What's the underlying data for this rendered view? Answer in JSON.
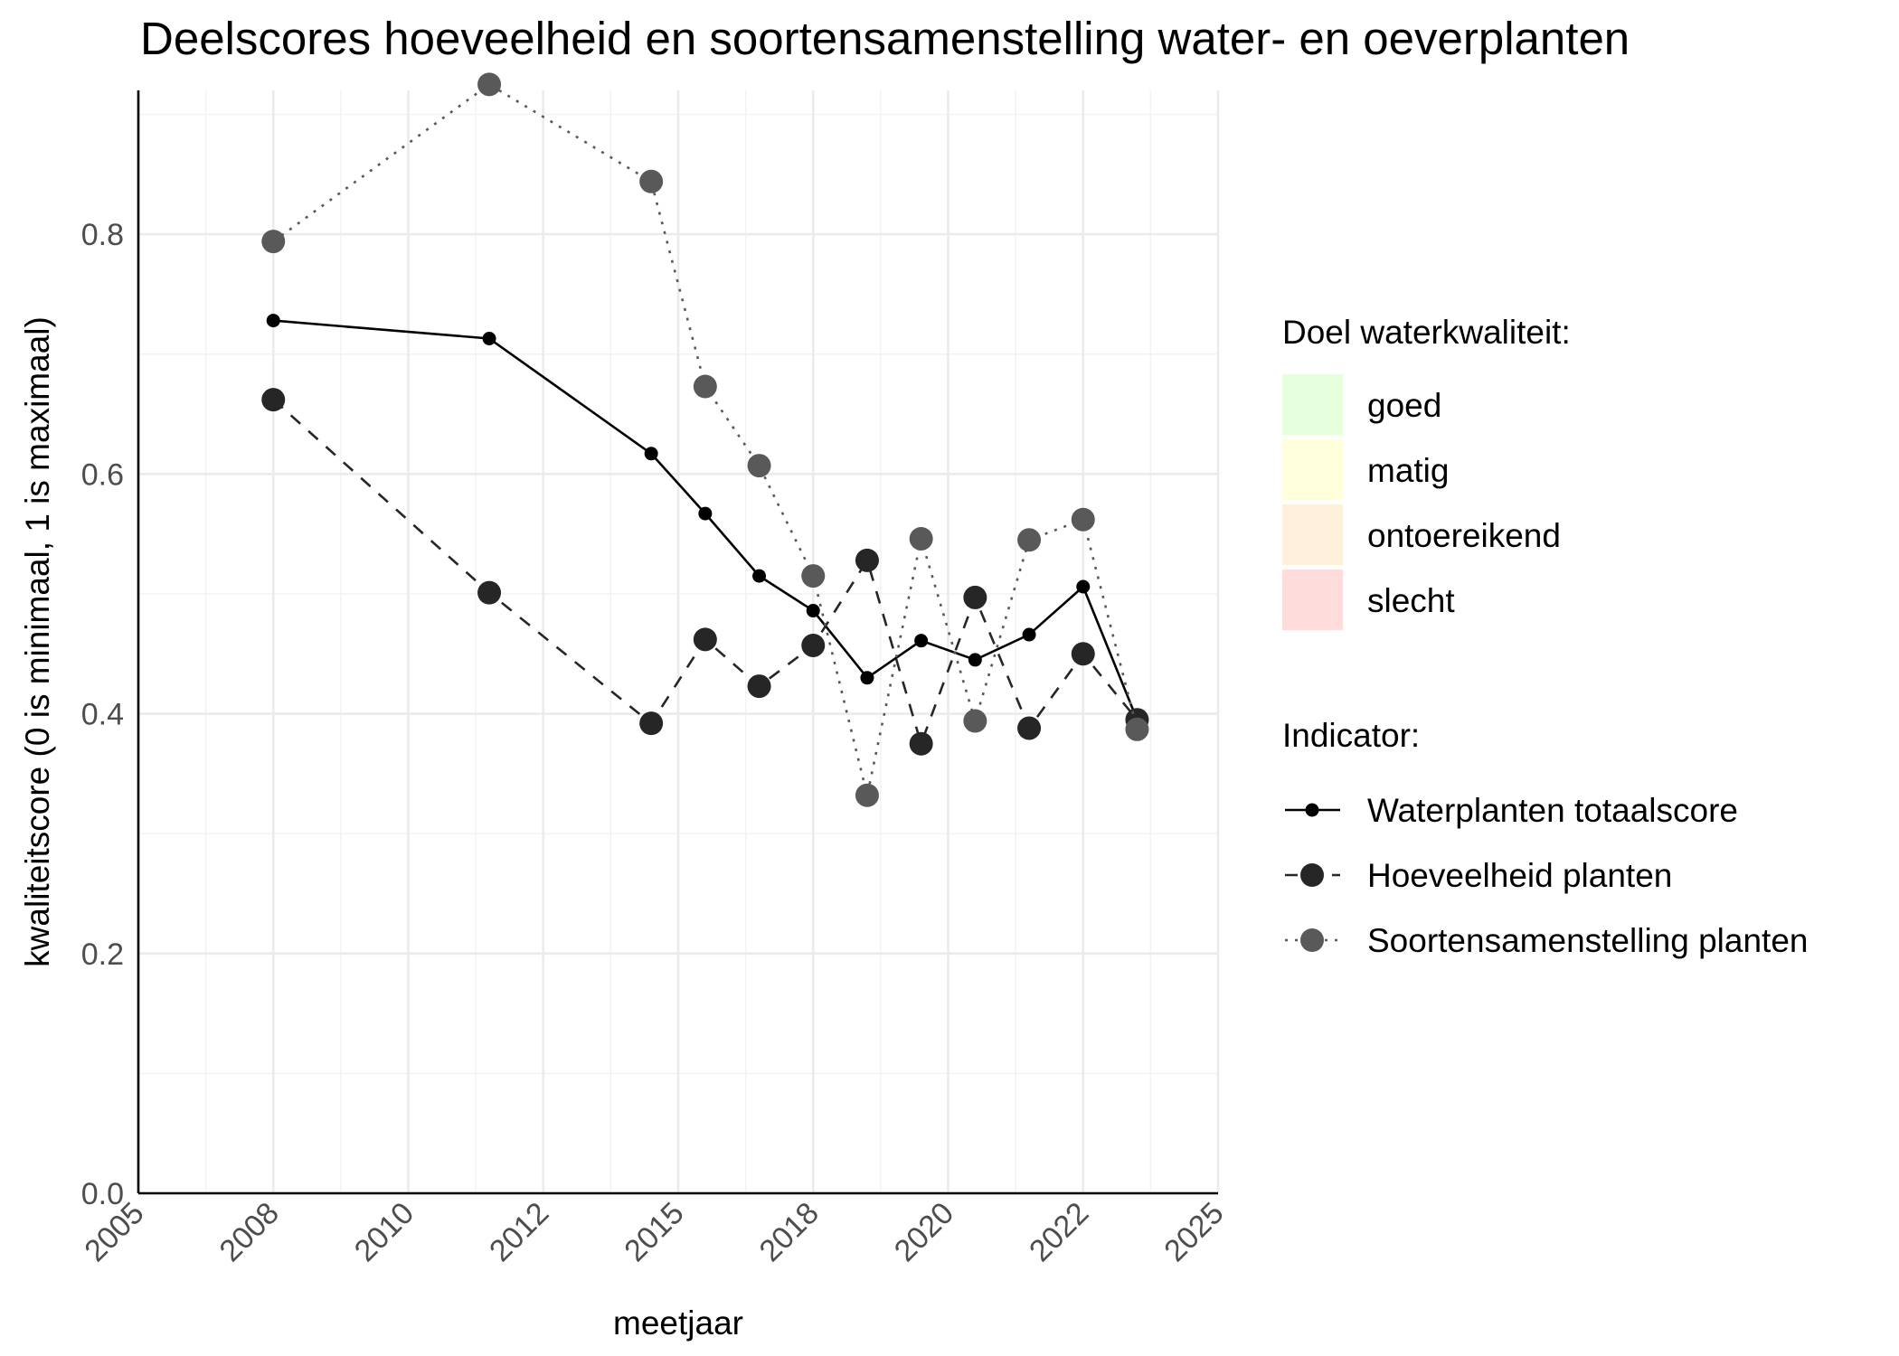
{
  "chart_data": {
    "type": "line",
    "title": "Deelscores hoeveelheid en soortensamenstelling water- en oeverplanten",
    "xlabel": "meetjaar",
    "ylabel": "kwaliteitscore (0 is minimaal, 1 is maximaal)",
    "xlim": [
      2005,
      2025
    ],
    "ylim": [
      0,
      0.92
    ],
    "x_ticks": [
      "2005",
      "2008",
      "2010",
      "2012",
      "2015",
      "2018",
      "2020",
      "2022",
      "2025"
    ],
    "y_ticks": [
      "0.0",
      "0.2",
      "0.4",
      "0.6",
      "0.8"
    ],
    "y_tick_values": [
      0.0,
      0.2,
      0.4,
      0.6,
      0.8
    ],
    "grid": true,
    "legend_position": "right",
    "legend_fill": {
      "title": "Doel waterkwaliteit:",
      "items": [
        {
          "label": "goed",
          "color": "#e6ffdc"
        },
        {
          "label": "matig",
          "color": "#ffffdc"
        },
        {
          "label": "ontoereikend",
          "color": "#fff0dc"
        },
        {
          "label": "slecht",
          "color": "#ffdcdc"
        }
      ]
    },
    "legend_series_title": "Indicator:",
    "series": [
      {
        "name": "Waterplanten totaalscore",
        "line": "solid",
        "color": "#000000",
        "marker_size": "small",
        "x": [
          2007.5,
          2011.5,
          2014.5,
          2015.5,
          2016.5,
          2017.5,
          2018.5,
          2019.5,
          2020.5,
          2021.5,
          2022.5,
          2023.5
        ],
        "y": [
          0.728,
          0.713,
          0.617,
          0.567,
          0.515,
          0.486,
          0.43,
          0.461,
          0.445,
          0.466,
          0.506,
          0.395
        ]
      },
      {
        "name": "Hoeveelheid planten",
        "line": "dashed",
        "color": "#262626",
        "marker_size": "large",
        "x": [
          2007.5,
          2011.5,
          2014.5,
          2015.5,
          2016.5,
          2017.5,
          2018.5,
          2019.5,
          2020.5,
          2021.5,
          2022.5,
          2023.5
        ],
        "y": [
          0.662,
          0.501,
          0.392,
          0.462,
          0.423,
          0.457,
          0.528,
          0.375,
          0.497,
          0.388,
          0.45,
          0.395
        ]
      },
      {
        "name": "Soortensamenstelling planten",
        "line": "dotted",
        "color": "#595959",
        "marker_size": "large",
        "x": [
          2007.5,
          2011.5,
          2014.5,
          2015.5,
          2016.5,
          2017.5,
          2018.5,
          2019.5,
          2020.5,
          2021.5,
          2022.5,
          2023.5
        ],
        "y": [
          0.794,
          0.925,
          0.844,
          0.673,
          0.607,
          0.515,
          0.332,
          0.546,
          0.394,
          0.545,
          0.562,
          0.387
        ]
      }
    ]
  }
}
